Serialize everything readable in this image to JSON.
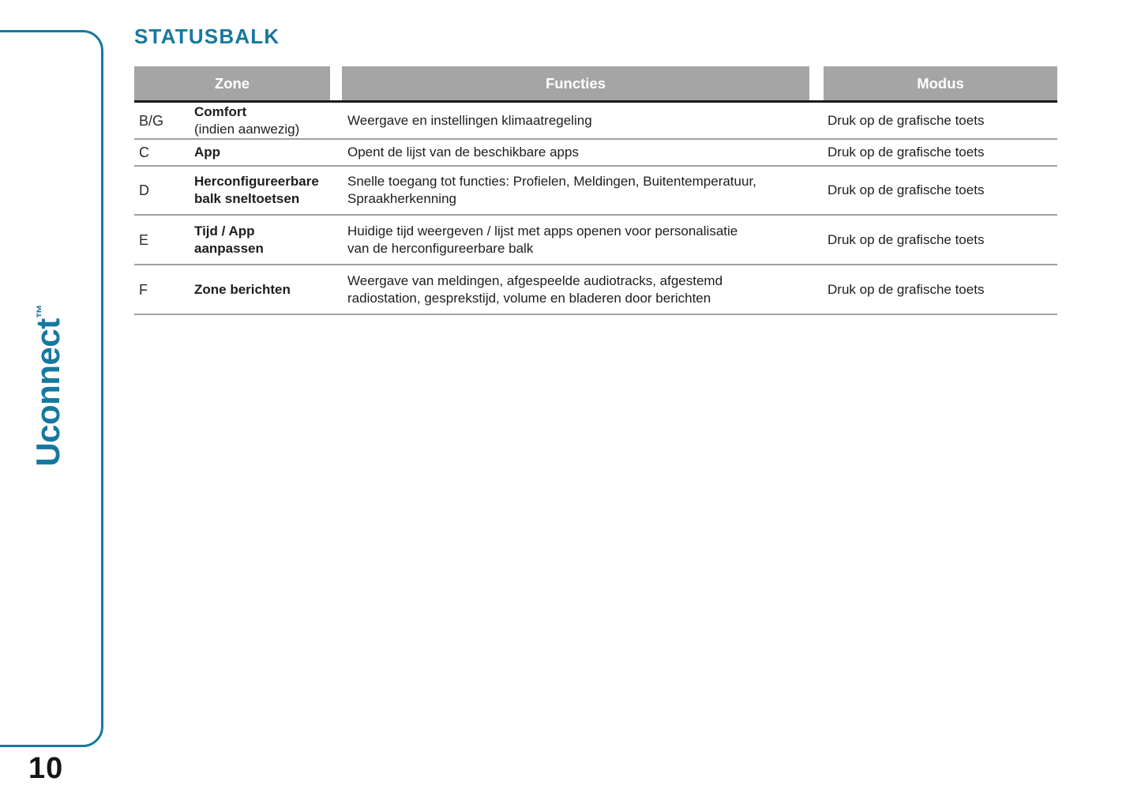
{
  "theme": {
    "accent_color": "#17789F",
    "table_header_bg": "#A5A5A5",
    "table_header_text": "#FFFFFF",
    "separator_color": "#A0A0A0",
    "text_color": "#1D1D1D"
  },
  "header": {
    "title": "STATUSBALK"
  },
  "sidebar": {
    "logo_text": "Uconnect",
    "logo_trademark": "™"
  },
  "footer": {
    "page_number": "10"
  },
  "table": {
    "headers": [
      "Zone",
      "Functies",
      "Modus"
    ],
    "rows": [
      {
        "letter": "B/G",
        "name": "Comfort",
        "note": "(indien aanwezig)",
        "functies": "Weergave en instellingen klimaatregeling",
        "modus": "Druk op de grafische toets"
      },
      {
        "letter": "C",
        "name": "App",
        "note": "",
        "functies": "Opent de lijst van de beschikbare apps",
        "modus": "Druk op de grafische toets"
      },
      {
        "letter": "D",
        "name": "Herconfigureerbare\nbalk sneltoetsen",
        "note": "",
        "functies": "Snelle toegang tot functies: Profielen, Meldingen, Buitentemperatuur,\nSpraakherkenning",
        "modus": "Druk op de grafische toets"
      },
      {
        "letter": "E",
        "name": "Tijd / App\naanpassen",
        "note": "",
        "functies": "Huidige tijd weergeven / lijst met apps openen voor personalisatie\nvan de herconfigureerbare balk",
        "modus": "Druk op de grafische toets"
      },
      {
        "letter": "F",
        "name": "Zone berichten",
        "note": "",
        "functies": "Weergave van meldingen, afgespeelde audiotracks, afgestemd\nradiostation, gesprekstijd, volume en bladeren door berichten",
        "modus": "Druk op de grafische toets"
      }
    ]
  }
}
